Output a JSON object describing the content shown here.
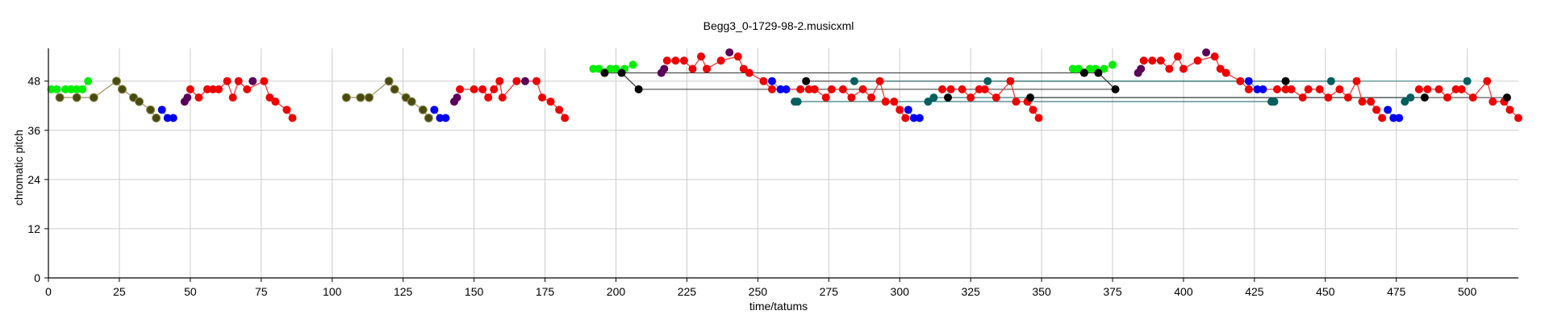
{
  "chart_data": {
    "type": "scatter",
    "title": "Begg3_0-1729-98-2.musicxml",
    "xlabel": "time/tatums",
    "ylabel": "chromatic pitch",
    "xlim": [
      0,
      518
    ],
    "ylim": [
      0,
      56
    ],
    "xticks": [
      0,
      25,
      50,
      75,
      100,
      125,
      150,
      175,
      200,
      225,
      250,
      275,
      300,
      325,
      350,
      375,
      400,
      425,
      450,
      475,
      500
    ],
    "yticks": [
      0,
      12,
      24,
      36,
      48
    ],
    "grid": true,
    "colors": {
      "green": "#00ee00",
      "olive": "#4a4a10",
      "blue": "#0000ee",
      "purple": "#5a005a",
      "red": "#ee0000",
      "teal": "#005f5f",
      "black": "#000000",
      "grid": "#cccccc"
    },
    "series": [
      {
        "color": "green",
        "line": "#55cc55",
        "points": [
          [
            1,
            46
          ],
          [
            3,
            46
          ],
          [
            6,
            46
          ],
          [
            8,
            46
          ],
          [
            10,
            46
          ],
          [
            12,
            46
          ],
          [
            14,
            48
          ],
          [
            192,
            51
          ],
          [
            194,
            51
          ],
          [
            198,
            51
          ],
          [
            200,
            51
          ],
          [
            203,
            51
          ],
          [
            206,
            52
          ],
          [
            361,
            51
          ],
          [
            363,
            51
          ],
          [
            367,
            51
          ],
          [
            369,
            51
          ],
          [
            372,
            51
          ],
          [
            375,
            52
          ]
        ]
      },
      {
        "color": "olive",
        "line": "#a89868",
        "points": [
          [
            4,
            44
          ],
          [
            10,
            44
          ],
          [
            16,
            44
          ],
          [
            24,
            48
          ],
          [
            26,
            46
          ],
          [
            30,
            44
          ],
          [
            32,
            43
          ],
          [
            36,
            41
          ],
          [
            38,
            39
          ],
          [
            105,
            44
          ],
          [
            110,
            44
          ],
          [
            113,
            44
          ],
          [
            120,
            48
          ],
          [
            122,
            46
          ],
          [
            126,
            44
          ],
          [
            128,
            43
          ],
          [
            132,
            41
          ],
          [
            134,
            39
          ]
        ]
      },
      {
        "color": "blue",
        "line": "#8888ff",
        "points": [
          [
            40,
            41
          ],
          [
            42,
            39
          ],
          [
            44,
            39
          ],
          [
            136,
            41
          ],
          [
            138,
            39
          ],
          [
            140,
            39
          ],
          [
            255,
            48
          ],
          [
            258,
            46
          ],
          [
            260,
            46
          ],
          [
            303,
            41
          ],
          [
            305,
            39
          ],
          [
            307,
            39
          ],
          [
            423,
            48
          ],
          [
            426,
            46
          ],
          [
            428,
            46
          ],
          [
            472,
            41
          ],
          [
            474,
            39
          ],
          [
            476,
            39
          ]
        ]
      },
      {
        "color": "purple",
        "line": "#bb66bb",
        "points": [
          [
            48,
            43
          ],
          [
            49,
            44
          ],
          [
            72,
            48
          ],
          [
            143,
            43
          ],
          [
            144,
            44
          ],
          [
            168,
            48
          ],
          [
            216,
            50
          ],
          [
            217,
            51
          ],
          [
            240,
            55
          ],
          [
            384,
            50
          ],
          [
            385,
            51
          ],
          [
            408,
            55
          ]
        ]
      },
      {
        "color": "red",
        "line": "#ff3333",
        "points": [
          [
            50,
            46
          ],
          [
            53,
            44
          ],
          [
            56,
            46
          ],
          [
            58,
            46
          ],
          [
            60,
            46
          ],
          [
            63,
            48
          ],
          [
            65,
            44
          ],
          [
            67,
            48
          ],
          [
            70,
            46
          ],
          [
            76,
            48
          ],
          [
            78,
            44
          ],
          [
            80,
            43
          ],
          [
            84,
            41
          ],
          [
            86,
            39
          ],
          [
            145,
            46
          ],
          [
            150,
            46
          ],
          [
            153,
            46
          ],
          [
            155,
            44
          ],
          [
            157,
            46
          ],
          [
            159,
            48
          ],
          [
            160,
            44
          ],
          [
            165,
            48
          ],
          [
            172,
            48
          ],
          [
            174,
            44
          ],
          [
            177,
            43
          ],
          [
            180,
            41
          ],
          [
            182,
            39
          ],
          [
            218,
            53
          ],
          [
            221,
            53
          ],
          [
            224,
            53
          ],
          [
            227,
            51
          ],
          [
            230,
            54
          ],
          [
            232,
            51
          ],
          [
            237,
            53
          ],
          [
            245,
            51
          ],
          [
            243,
            54
          ],
          [
            247,
            50
          ],
          [
            252,
            48
          ],
          [
            255,
            46
          ],
          [
            265,
            46
          ],
          [
            268,
            46
          ],
          [
            270,
            46
          ],
          [
            274,
            44
          ],
          [
            276,
            46
          ],
          [
            280,
            46
          ],
          [
            283,
            44
          ],
          [
            287,
            46
          ],
          [
            290,
            44
          ],
          [
            293,
            48
          ],
          [
            295,
            43
          ],
          [
            298,
            43
          ],
          [
            300,
            41
          ],
          [
            302,
            39
          ],
          [
            315,
            46
          ],
          [
            318,
            46
          ],
          [
            322,
            46
          ],
          [
            325,
            44
          ],
          [
            328,
            46
          ],
          [
            330,
            46
          ],
          [
            334,
            44
          ],
          [
            339,
            48
          ],
          [
            341,
            43
          ],
          [
            345,
            43
          ],
          [
            347,
            41
          ],
          [
            349,
            39
          ],
          [
            386,
            53
          ],
          [
            389,
            53
          ],
          [
            392,
            53
          ],
          [
            395,
            51
          ],
          [
            398,
            54
          ],
          [
            400,
            51
          ],
          [
            405,
            53
          ],
          [
            413,
            51
          ],
          [
            411,
            54
          ],
          [
            415,
            50
          ],
          [
            420,
            48
          ],
          [
            423,
            46
          ],
          [
            433,
            46
          ],
          [
            436,
            46
          ],
          [
            438,
            46
          ],
          [
            442,
            44
          ],
          [
            444,
            46
          ],
          [
            448,
            46
          ],
          [
            451,
            44
          ],
          [
            455,
            46
          ],
          [
            458,
            44
          ],
          [
            461,
            48
          ],
          [
            463,
            43
          ],
          [
            466,
            43
          ],
          [
            468,
            41
          ],
          [
            470,
            39
          ],
          [
            483,
            46
          ],
          [
            486,
            46
          ],
          [
            490,
            46
          ],
          [
            493,
            44
          ],
          [
            496,
            46
          ],
          [
            498,
            46
          ],
          [
            502,
            44
          ],
          [
            507,
            48
          ],
          [
            509,
            43
          ],
          [
            513,
            43
          ],
          [
            515,
            41
          ],
          [
            518,
            39
          ]
        ]
      },
      {
        "color": "teal",
        "line": "#669999",
        "points": [
          [
            263,
            43
          ],
          [
            264,
            43
          ],
          [
            284,
            48
          ],
          [
            310,
            43
          ],
          [
            312,
            44
          ],
          [
            331,
            48
          ],
          [
            431,
            43
          ],
          [
            432,
            43
          ],
          [
            452,
            48
          ],
          [
            478,
            43
          ],
          [
            480,
            44
          ],
          [
            500,
            48
          ]
        ]
      },
      {
        "color": "black",
        "line": "#444444",
        "points": [
          [
            196,
            50
          ],
          [
            202,
            50
          ],
          [
            208,
            46
          ],
          [
            267,
            48
          ],
          [
            317,
            44
          ],
          [
            346,
            44
          ],
          [
            365,
            50
          ],
          [
            370,
            50
          ],
          [
            376,
            46
          ],
          [
            436,
            48
          ],
          [
            485,
            44
          ],
          [
            514,
            44
          ]
        ]
      }
    ],
    "connectors": [
      {
        "from": [
          196,
          50
        ],
        "to": [
          365,
          50
        ],
        "color": "#333333"
      },
      {
        "from": [
          202,
          50
        ],
        "to": [
          370,
          50
        ],
        "color": "#333333"
      },
      {
        "from": [
          208,
          46
        ],
        "to": [
          376,
          46
        ],
        "color": "#333333"
      },
      {
        "from": [
          267,
          48
        ],
        "to": [
          436,
          48
        ],
        "color": "#333333"
      },
      {
        "from": [
          284,
          48
        ],
        "to": [
          452,
          48
        ],
        "color": "#337777"
      },
      {
        "from": [
          263,
          43
        ],
        "to": [
          431,
          43
        ],
        "color": "#337777"
      },
      {
        "from": [
          264,
          43
        ],
        "to": [
          432,
          43
        ],
        "color": "#337777"
      },
      {
        "from": [
          312,
          44
        ],
        "to": [
          480,
          44
        ],
        "color": "#337777"
      },
      {
        "from": [
          317,
          44
        ],
        "to": [
          485,
          44
        ],
        "color": "#337777"
      },
      {
        "from": [
          331,
          48
        ],
        "to": [
          500,
          48
        ],
        "color": "#337777"
      },
      {
        "from": [
          346,
          44
        ],
        "to": [
          514,
          44
        ],
        "color": "#333333"
      }
    ]
  }
}
